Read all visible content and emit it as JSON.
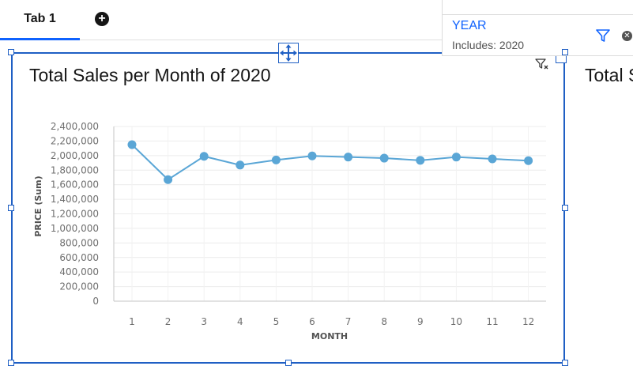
{
  "tabs": [
    {
      "label": "Tab 1",
      "active": true
    }
  ],
  "add_tab_icon": "plus-circle-icon",
  "filter": {
    "title": "YEAR",
    "subtitle": "Includes: 2020",
    "icons": [
      "funnel-icon",
      "close-icon"
    ]
  },
  "widget": {
    "title": "Total Sales per Month of 2020",
    "icons": [
      "move-icon",
      "filter-icon"
    ]
  },
  "neighbor_widget": {
    "title_fragment": "Total S"
  },
  "colors": {
    "accent": "#0f62fe",
    "selection": "#1f5fc4",
    "series": "#5aa6d6"
  },
  "chart_data": {
    "type": "line",
    "title": "Total Sales per Month of 2020",
    "xlabel": "MONTH",
    "ylabel": "PRICE (Sum)",
    "x": [
      "1",
      "2",
      "3",
      "4",
      "5",
      "6",
      "7",
      "8",
      "9",
      "10",
      "11",
      "12"
    ],
    "series": [
      {
        "values": [
          2150000,
          1670000,
          1990000,
          1870000,
          1940000,
          1995000,
          1980000,
          1965000,
          1935000,
          1980000,
          1955000,
          1930000
        ]
      }
    ],
    "ylim": [
      0,
      2400000
    ],
    "yticks": [
      "0",
      "200,000",
      "400,000",
      "600,000",
      "800,000",
      "1,000,000",
      "1,200,000",
      "1,400,000",
      "1,600,000",
      "1,800,000",
      "2,000,000",
      "2,200,000",
      "2,400,000"
    ],
    "grid": true,
    "legend": "none"
  }
}
